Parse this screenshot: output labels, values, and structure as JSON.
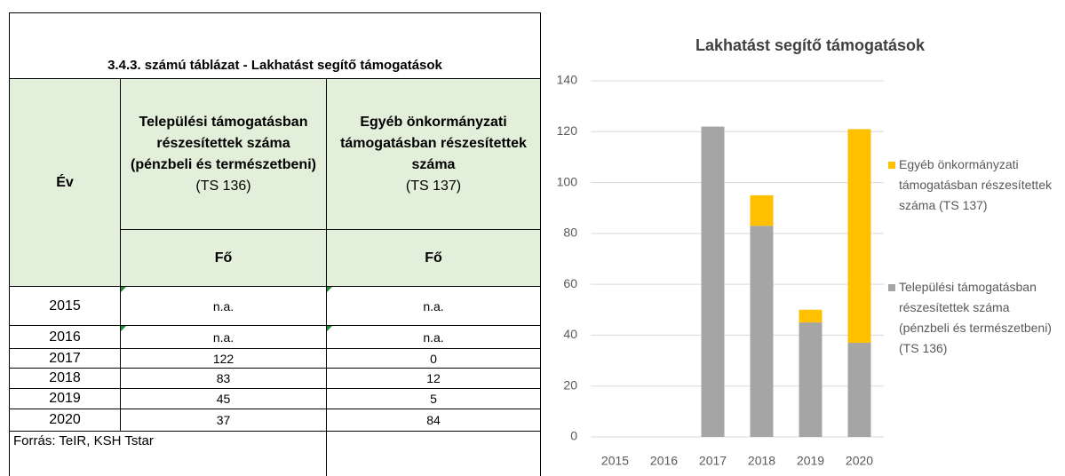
{
  "table": {
    "title": "3.4.3. számú táblázat - Lakhatást segítő támogatások",
    "columns": [
      {
        "label": "Év"
      },
      {
        "label": "Települési támogatásban részesítettek száma (pénzbeli és természetbeni)",
        "code": "(TS 136)",
        "unit": "Fő"
      },
      {
        "label": "Egyéb önkormányzati támogatásban részesítettek száma",
        "code": "(TS 137)",
        "unit": "Fő"
      }
    ],
    "rows": [
      [
        "2015",
        "n.a.",
        "n.a."
      ],
      [
        "2016",
        "n.a.",
        "n.a."
      ],
      [
        "2017",
        122,
        0
      ],
      [
        "2018",
        83,
        12
      ],
      [
        "2019",
        45,
        5
      ],
      [
        "2020",
        37,
        84
      ]
    ],
    "source": "Forrás: TeIR, KSH Tstar"
  },
  "chart_data": {
    "type": "stacked-bar",
    "title": "Lakhatást segítő támogatások",
    "categories": [
      "2015",
      "2016",
      "2017",
      "2018",
      "2019",
      "2020"
    ],
    "series": [
      {
        "name": "Települési támogatásban részesítettek száma (pénzbeli és természetbeni) (TS 136)",
        "color": "#a5a5a5",
        "values": [
          null,
          null,
          122,
          83,
          45,
          37
        ]
      },
      {
        "name": "Egyéb önkormányzati támogatásban részesítettek száma (TS 137)",
        "color": "#ffc000",
        "values": [
          null,
          null,
          0,
          12,
          5,
          84
        ]
      }
    ],
    "ylim": [
      0,
      140
    ],
    "yticks": [
      0,
      20,
      40,
      60,
      80,
      100,
      120,
      140
    ],
    "grid": true,
    "legend": "right"
  }
}
